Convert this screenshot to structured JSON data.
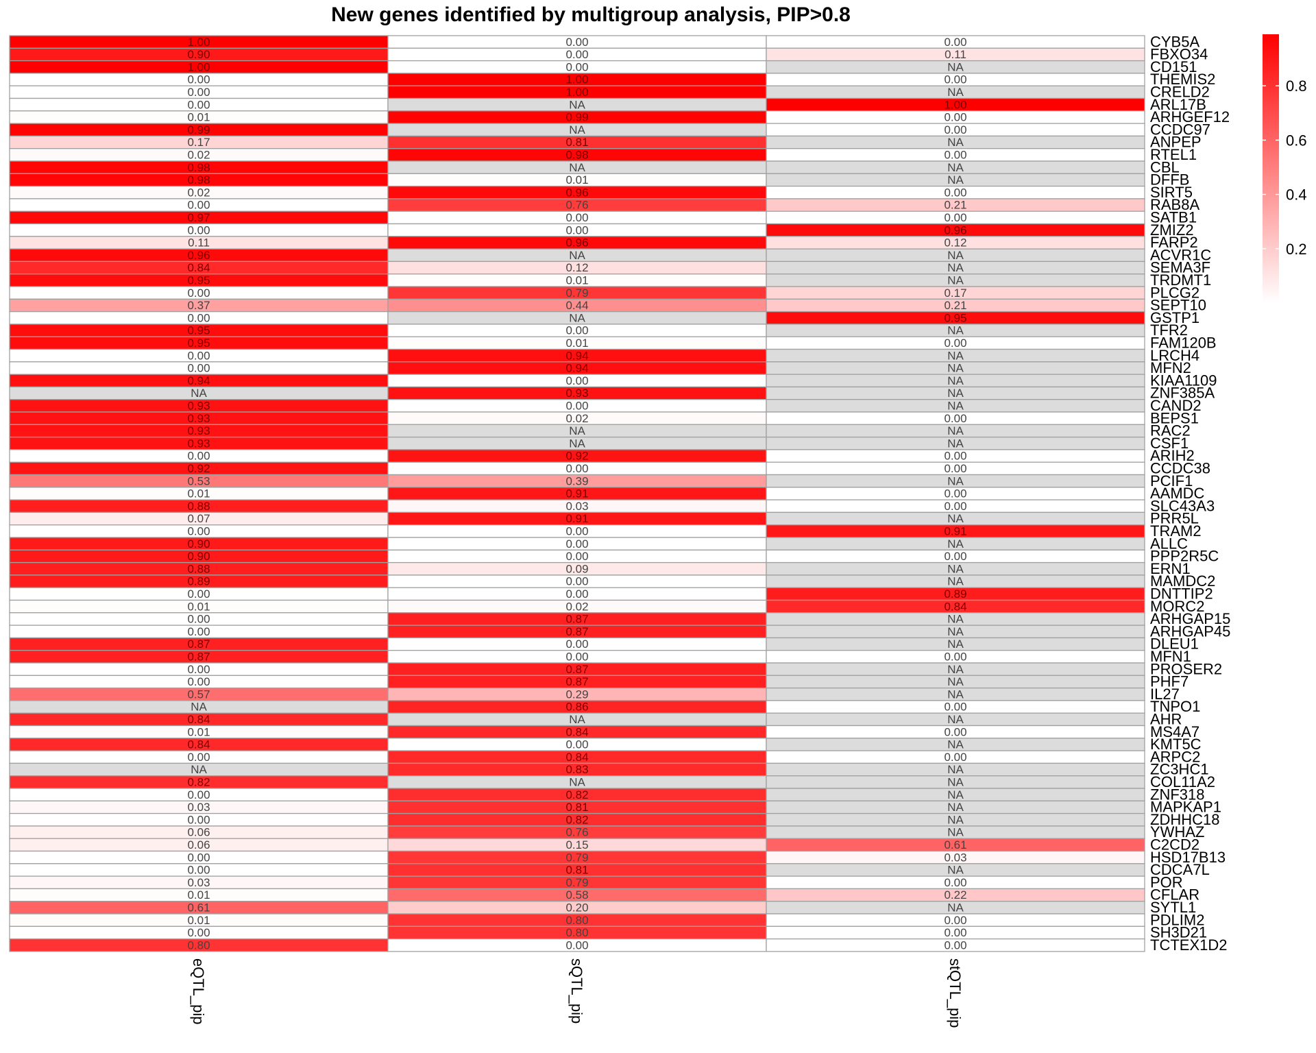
{
  "chart_data": {
    "type": "heatmap",
    "title": "New genes identified by multigroup analysis, PIP>0.8",
    "columns": [
      "eQTL_pip",
      "sQTL_pip",
      "stQTL_pip"
    ],
    "rows": [
      "CYB5A",
      "FBXO34",
      "CD151",
      "THEMIS2",
      "CRELD2",
      "ARL17B",
      "ARHGEF12",
      "CCDC97",
      "ANPEP",
      "RTEL1",
      "CBL",
      "DFFB",
      "SIRT5",
      "RAB8A",
      "SATB1",
      "ZMIZ2",
      "FARP2",
      "ACVR1C",
      "SEMA3F",
      "TRDMT1",
      "PLCG2",
      "SEPT10",
      "GSTP1",
      "TFR2",
      "FAM120B",
      "LRCH4",
      "MFN2",
      "KIAA1109",
      "ZNF385A",
      "CAND2",
      "BEPS1",
      "RAC2",
      "CSF1",
      "ARIH2",
      "CCDC38",
      "PCIF1",
      "AAMDC",
      "SLC43A3",
      "PRR5L",
      "TRAM2",
      "ALLC",
      "PPP2R5C",
      "ERN1",
      "MAMDC2",
      "DNTTIP2",
      "MORC2",
      "ARHGAP15",
      "ARHGAP45",
      "DLEU1",
      "MFN1",
      "PROSER2",
      "PHF7",
      "IL27",
      "TNPO1",
      "AHR",
      "MS4A7",
      "KMT5C",
      "ARPC2",
      "ZC3HC1",
      "COL11A2",
      "ZNF318",
      "MAPKAP1",
      "ZDHHC18",
      "YWHAZ",
      "C2CD2",
      "HSD17B13",
      "CDCA7L",
      "POR",
      "CFLAR",
      "SYTL1",
      "PDLIM2",
      "SH3D21",
      "TCTEX1D2"
    ],
    "values": [
      [
        "1.00",
        "0.00",
        "0.00"
      ],
      [
        "0.90",
        "0.00",
        "0.11"
      ],
      [
        "1.00",
        "0.00",
        "NA"
      ],
      [
        "0.00",
        "1.00",
        "0.00"
      ],
      [
        "0.00",
        "1.00",
        "NA"
      ],
      [
        "0.00",
        "NA",
        "1.00"
      ],
      [
        "0.01",
        "0.99",
        "0.00"
      ],
      [
        "0.99",
        "NA",
        "0.00"
      ],
      [
        "0.17",
        "0.81",
        "NA"
      ],
      [
        "0.02",
        "0.98",
        "0.00"
      ],
      [
        "0.98",
        "NA",
        "NA"
      ],
      [
        "0.98",
        "0.01",
        "NA"
      ],
      [
        "0.02",
        "0.96",
        "0.00"
      ],
      [
        "0.00",
        "0.76",
        "0.21"
      ],
      [
        "0.97",
        "0.00",
        "0.00"
      ],
      [
        "0.00",
        "0.00",
        "0.96"
      ],
      [
        "0.11",
        "0.96",
        "0.12"
      ],
      [
        "0.96",
        "NA",
        "NA"
      ],
      [
        "0.84",
        "0.12",
        "NA"
      ],
      [
        "0.95",
        "0.01",
        "NA"
      ],
      [
        "0.00",
        "0.79",
        "0.17"
      ],
      [
        "0.37",
        "0.44",
        "0.21"
      ],
      [
        "0.00",
        "NA",
        "0.95"
      ],
      [
        "0.95",
        "0.00",
        "NA"
      ],
      [
        "0.95",
        "0.01",
        "0.00"
      ],
      [
        "0.00",
        "0.94",
        "NA"
      ],
      [
        "0.00",
        "0.94",
        "NA"
      ],
      [
        "0.94",
        "0.00",
        "NA"
      ],
      [
        "NA",
        "0.93",
        "NA"
      ],
      [
        "0.93",
        "0.00",
        "NA"
      ],
      [
        "0.93",
        "0.02",
        "0.00"
      ],
      [
        "0.93",
        "NA",
        "NA"
      ],
      [
        "0.93",
        "NA",
        "NA"
      ],
      [
        "0.00",
        "0.92",
        "0.00"
      ],
      [
        "0.92",
        "0.00",
        "0.00"
      ],
      [
        "0.53",
        "0.39",
        "NA"
      ],
      [
        "0.01",
        "0.91",
        "0.00"
      ],
      [
        "0.88",
        "0.03",
        "0.00"
      ],
      [
        "0.07",
        "0.91",
        "NA"
      ],
      [
        "0.00",
        "0.00",
        "0.91"
      ],
      [
        "0.90",
        "0.00",
        "NA"
      ],
      [
        "0.90",
        "0.00",
        "0.00"
      ],
      [
        "0.88",
        "0.09",
        "NA"
      ],
      [
        "0.89",
        "0.00",
        "NA"
      ],
      [
        "0.00",
        "0.00",
        "0.89"
      ],
      [
        "0.01",
        "0.02",
        "0.84"
      ],
      [
        "0.00",
        "0.87",
        "NA"
      ],
      [
        "0.00",
        "0.87",
        "NA"
      ],
      [
        "0.87",
        "0.00",
        "NA"
      ],
      [
        "0.87",
        "0.00",
        "0.00"
      ],
      [
        "0.00",
        "0.87",
        "NA"
      ],
      [
        "0.00",
        "0.87",
        "NA"
      ],
      [
        "0.57",
        "0.29",
        "NA"
      ],
      [
        "NA",
        "0.86",
        "0.00"
      ],
      [
        "0.84",
        "NA",
        "NA"
      ],
      [
        "0.01",
        "0.84",
        "0.00"
      ],
      [
        "0.84",
        "0.00",
        "NA"
      ],
      [
        "0.00",
        "0.84",
        "0.00"
      ],
      [
        "NA",
        "0.83",
        "NA"
      ],
      [
        "0.82",
        "NA",
        "NA"
      ],
      [
        "0.00",
        "0.82",
        "NA"
      ],
      [
        "0.03",
        "0.81",
        "NA"
      ],
      [
        "0.00",
        "0.82",
        "NA"
      ],
      [
        "0.06",
        "0.76",
        "NA"
      ],
      [
        "0.06",
        "0.15",
        "0.61"
      ],
      [
        "0.00",
        "0.79",
        "0.03"
      ],
      [
        "0.00",
        "0.81",
        "NA"
      ],
      [
        "0.03",
        "0.79",
        "0.00"
      ],
      [
        "0.01",
        "0.58",
        "0.22"
      ],
      [
        "0.61",
        "0.20",
        "NA"
      ],
      [
        "0.01",
        "0.80",
        "0.00"
      ],
      [
        "0.00",
        "0.80",
        "0.00"
      ],
      [
        "0.80",
        "0.00",
        "0.00"
      ]
    ],
    "legend": {
      "ticks": [
        "0.2",
        "0.4",
        "0.6",
        "0.8"
      ],
      "min": 0,
      "max": 1.0,
      "low_color": "#ffffff",
      "high_color": "#ff0000"
    },
    "na_color": "#dcdcdc",
    "grid_color": "#a0a0a0"
  }
}
